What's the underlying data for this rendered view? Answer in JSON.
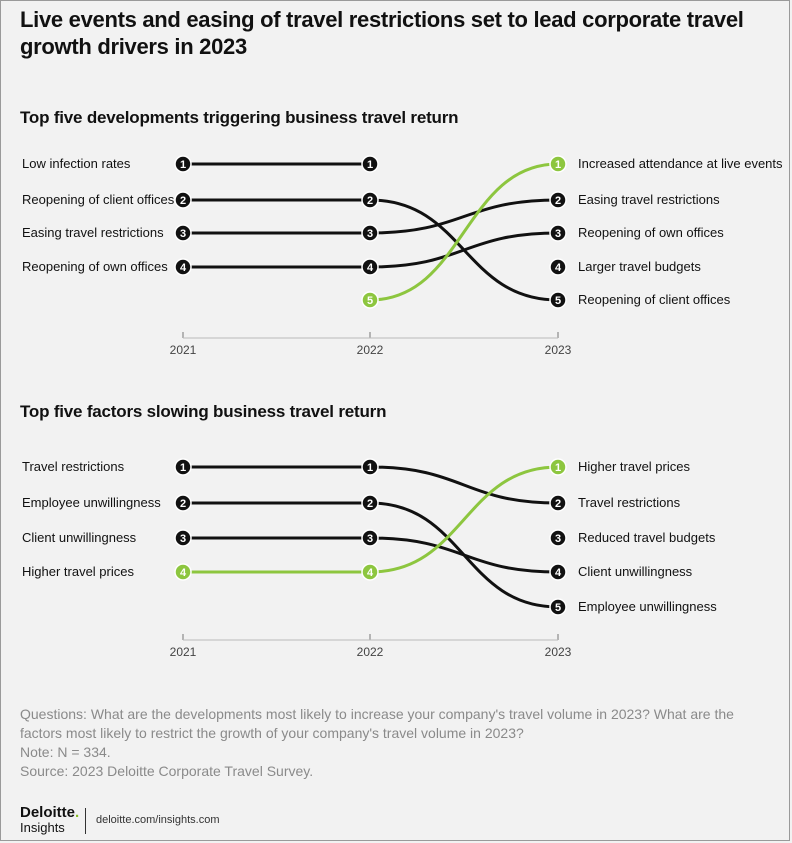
{
  "title": "Live events and easing of travel restrictions set to lead corporate travel growth drivers in 2023",
  "colors": {
    "highlight": "#8dc63f",
    "line": "#111111",
    "background": "#f2f2f2"
  },
  "chart_data": [
    {
      "type": "line",
      "title": "Top five developments triggering business travel return",
      "x": [
        "2021",
        "2022",
        "2023"
      ],
      "y_meaning": "rank",
      "series": [
        {
          "name": "Low infection rates",
          "ranks": [
            1,
            1,
            null
          ],
          "highlight": false
        },
        {
          "name": "Reopening of client offices",
          "ranks": [
            2,
            2,
            5
          ],
          "highlight": false
        },
        {
          "name": "Easing travel restrictions",
          "ranks": [
            3,
            3,
            2
          ],
          "highlight": false
        },
        {
          "name": "Reopening of own offices",
          "ranks": [
            4,
            4,
            3
          ],
          "highlight": false
        },
        {
          "name": "Increased attendance at live events",
          "ranks": [
            null,
            5,
            1
          ],
          "highlight": true
        },
        {
          "name": "Larger travel budgets",
          "ranks": [
            null,
            null,
            4
          ],
          "highlight": false
        }
      ],
      "left_labels": [
        "Low infection rates",
        "Reopening of client offices",
        "Easing travel restrictions",
        "Reopening of own offices"
      ],
      "right_labels": [
        "Increased attendance at live events",
        "Easing travel restrictions",
        "Reopening of own offices",
        "Larger travel budgets",
        "Reopening of client offices"
      ]
    },
    {
      "type": "line",
      "title": "Top five factors slowing business travel return",
      "x": [
        "2021",
        "2022",
        "2023"
      ],
      "y_meaning": "rank",
      "series": [
        {
          "name": "Travel restrictions",
          "ranks": [
            1,
            1,
            2
          ],
          "highlight": false
        },
        {
          "name": "Employee unwillingness",
          "ranks": [
            2,
            2,
            5
          ],
          "highlight": false
        },
        {
          "name": "Client unwillingness",
          "ranks": [
            3,
            3,
            4
          ],
          "highlight": false
        },
        {
          "name": "Higher travel prices",
          "ranks": [
            4,
            4,
            1
          ],
          "highlight": true
        },
        {
          "name": "Reduced travel budgets",
          "ranks": [
            null,
            null,
            3
          ],
          "highlight": false
        }
      ],
      "left_labels": [
        "Travel restrictions",
        "Employee unwillingness",
        "Client unwillingness",
        "Higher travel prices"
      ],
      "right_labels": [
        "Higher travel prices",
        "Travel restrictions",
        "Reduced travel budgets",
        "Client unwillingness",
        "Employee unwillingness"
      ]
    }
  ],
  "footnote": {
    "questions": "Questions: What are the developments most likely to increase your company's travel volume in 2023? What are the factors most likely to restrict the growth of your company's travel volume in 2023?",
    "note": "Note: N = 334.",
    "source": "Source: 2023 Deloitte Corporate Travel Survey."
  },
  "brand": {
    "name": "Deloitte",
    "dot": ".",
    "sub": "Insights",
    "url": "deloitte.com/insights.com"
  }
}
